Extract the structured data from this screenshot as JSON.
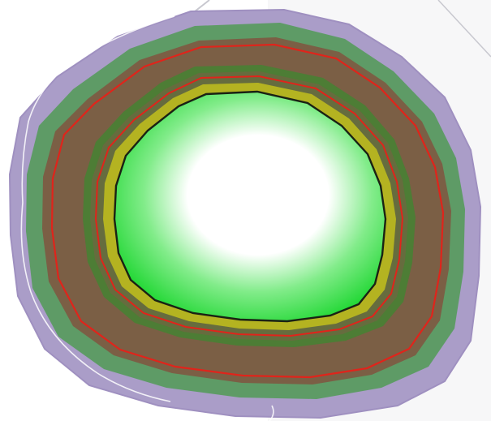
{
  "diagram": {
    "type": "concentric-zone-map",
    "labels_visible": false,
    "colors": {
      "background": "#ffffff",
      "background_shadow": "#f2f1f4",
      "outer_band": "#aa9dc8",
      "outer_band_edge": "#9f90c0",
      "green_band": "#5e9b66",
      "brown_band": "#7b5f45",
      "red_line": "#e0241b",
      "dark_green_band": "#4d7d35",
      "yellow_band": "#b4b321",
      "inner_outline": "#1a2214",
      "core_green": "#17d52b",
      "core_mid": "#82ec8a",
      "core_center": "#ffffff",
      "white_trace": "#ffffff",
      "grey_guides": "#c8c8cf"
    }
  }
}
